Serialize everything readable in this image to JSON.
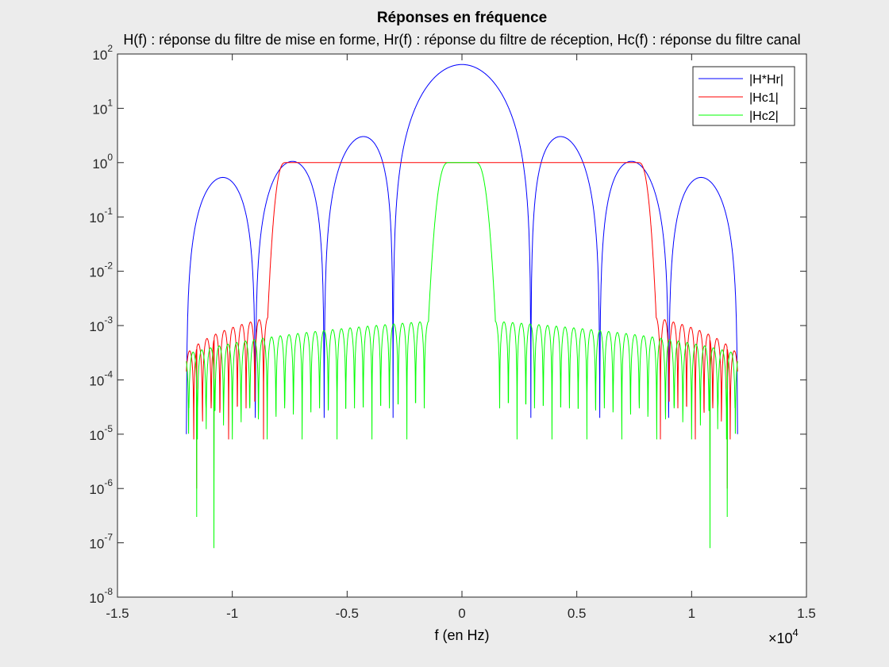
{
  "chart_data": {
    "type": "line",
    "title": "Réponses en fréquence",
    "subtitle": "H(f) : réponse du filtre de mise en forme, Hr(f) : réponse du filtre de réception, Hc(f) : réponse du filtre canal",
    "xlabel": "f (en Hz)",
    "ylabel": "",
    "x_exponent_label": "×10",
    "x_exponent": "4",
    "xlim": [
      -15000,
      15000
    ],
    "ylim": [
      1e-08,
      100
    ],
    "yscale": "log",
    "xtick_values": [
      -15000,
      -10000,
      -5000,
      0,
      5000,
      10000,
      15000
    ],
    "xtick_labels": [
      "-1.5",
      "-1",
      "-0.5",
      "0",
      "0.5",
      "1",
      "1.5"
    ],
    "ytick_exponents": [
      -8,
      -7,
      -6,
      -5,
      -4,
      -3,
      -2,
      -1,
      0,
      1,
      2
    ],
    "ytick_base": "10",
    "grid": false,
    "legend_position": "top-right",
    "series": [
      {
        "name": "|H*Hr|",
        "color": "#0000ff",
        "generator": "sinc_squared",
        "x_range": [
          -12000,
          12000
        ],
        "peak": 64,
        "null_spacing": 3000,
        "null_floor": 2e-05,
        "edge_value": 1e-05
      },
      {
        "name": "|Hc1|",
        "color": "#ff0000",
        "generator": "lowpass_filter",
        "x_range": [
          -12000,
          12000
        ],
        "passband_edge": 7700,
        "stopband_edge": 8450,
        "passband_level": 1.0,
        "ripple_envelope": [
          0.0003,
          0.0014
        ],
        "ripple_period": 380,
        "deep_nulls": [
          1.3e-06,
          1e-06
        ]
      },
      {
        "name": "|Hc2|",
        "color": "#00ff00",
        "generator": "lowpass_filter",
        "x_range": [
          -12000,
          12000
        ],
        "passband_edge": 600,
        "stopband_edge": 1450,
        "passband_level": 1.0,
        "ripple_envelope": [
          0.0003,
          0.0012
        ],
        "ripple_period": 380,
        "deep_nulls": [
          8e-08,
          3e-07
        ]
      }
    ]
  }
}
